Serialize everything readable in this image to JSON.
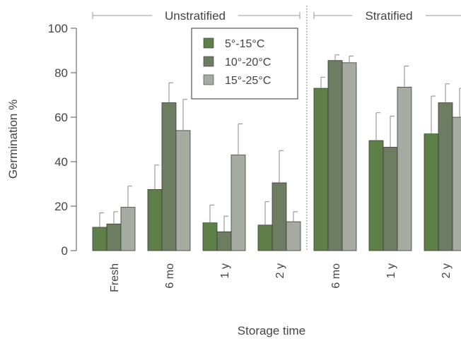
{
  "chart_data": {
    "type": "bar",
    "xlabel": "Storage time",
    "ylabel": "Germination %",
    "ylim": [
      0,
      100
    ],
    "yticks": [
      0,
      20,
      40,
      60,
      80,
      100
    ],
    "grid": false,
    "legend_position": "top-center",
    "series": [
      {
        "name": "5°-15°C",
        "color": "#5e8048"
      },
      {
        "name": "10°-20°C",
        "color": "#6c7d62"
      },
      {
        "name": "15°-25°C",
        "color": "#a6aba2"
      }
    ],
    "groups": [
      {
        "title": "Unstratified",
        "categories": [
          {
            "label": "Fresh",
            "values": [
              10.5,
              12,
              19.5
            ],
            "errors": [
              6.5,
              5.5,
              9.5
            ]
          },
          {
            "label": "6 mo",
            "values": [
              27.5,
              66.5,
              54
            ],
            "errors": [
              11,
              9,
              14
            ]
          },
          {
            "label": "1 y",
            "values": [
              12.5,
              8.5,
              43
            ],
            "errors": [
              8,
              7,
              14
            ]
          },
          {
            "label": "2 y",
            "values": [
              11.5,
              30.5,
              13
            ],
            "errors": [
              10.5,
              14.5,
              4.5
            ]
          }
        ]
      },
      {
        "title": "Stratified",
        "categories": [
          {
            "label": "6 mo",
            "values": [
              73,
              85.5,
              84.5
            ],
            "errors": [
              5,
              2.5,
              3
            ]
          },
          {
            "label": "1 y",
            "values": [
              49.5,
              46.5,
              73.5
            ],
            "errors": [
              12.5,
              14,
              9.5
            ]
          },
          {
            "label": "2 y",
            "values": [
              52.5,
              66.5,
              60
            ],
            "errors": [
              17,
              8.5,
              13
            ]
          }
        ]
      }
    ]
  }
}
